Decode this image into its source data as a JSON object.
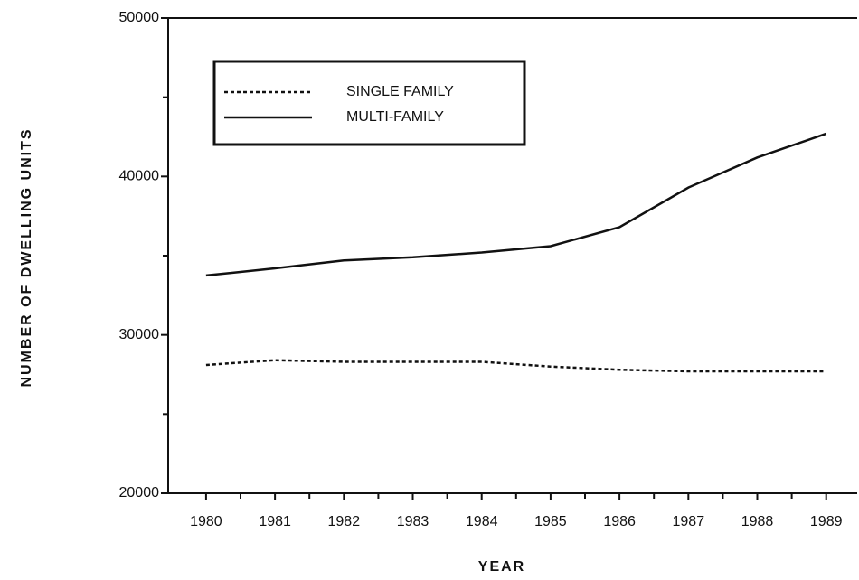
{
  "chart_data": {
    "type": "line",
    "xlabel": "YEAR",
    "ylabel": "NUMBER OF DWELLING UNITS",
    "x": [
      1980,
      1981,
      1982,
      1983,
      1984,
      1985,
      1986,
      1987,
      1988,
      1989
    ],
    "series": [
      {
        "name": "SINGLE FAMILY",
        "color": "#111111",
        "dash": "dotted",
        "values": [
          28100,
          28400,
          28300,
          28300,
          28300,
          28000,
          27800,
          27700,
          27700,
          27700
        ]
      },
      {
        "name": "MULTI-FAMILY",
        "color": "#111111",
        "dash": "solid",
        "values": [
          33750,
          34200,
          34700,
          34900,
          35200,
          35600,
          36800,
          39300,
          41200,
          42700
        ]
      }
    ],
    "xlim": [
      1979.45,
      1989.45
    ],
    "xticks": [
      1980,
      1981,
      1982,
      1983,
      1984,
      1985,
      1986,
      1987,
      1988,
      1989
    ],
    "xminor": [
      1980.5,
      1981.5,
      1982.5,
      1983.5,
      1984.5,
      1985.5,
      1986.5,
      1987.5,
      1988.5
    ],
    "ylim": [
      20000,
      50000
    ],
    "yticks": [
      20000,
      30000,
      40000,
      50000
    ],
    "yminor": [
      25000,
      35000,
      45000
    ],
    "grid": false,
    "legend": "upper left"
  }
}
